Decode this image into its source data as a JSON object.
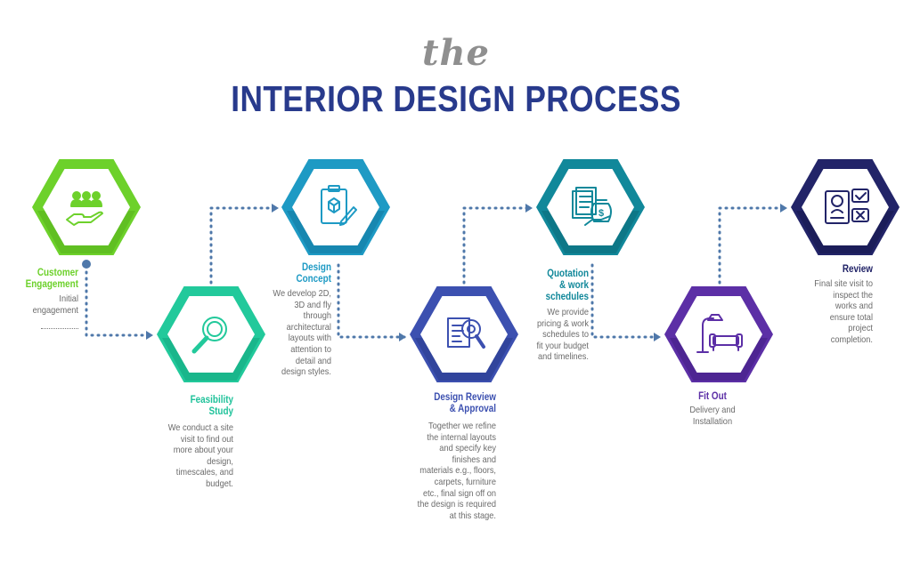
{
  "title": {
    "prefix": "the",
    "main": "INTERIOR DESIGN PROCESS"
  },
  "colors": {
    "title_main": "#283a8c",
    "title_prefix": "#8f8f8f",
    "connector": "#4f78aa",
    "description": "#6b6b6b"
  },
  "steps": [
    {
      "name": "Customer Engagement",
      "title": "Customer\nEngagement",
      "description": "Initial\nengagement",
      "color": "#6dd12b",
      "dark": "#55b11c",
      "icon": "group-hand-icon"
    },
    {
      "name": "Feasibility Study",
      "title": "Feasibility\nStudy",
      "description": "We conduct a site\nvisit to find out\nmore about your\ndesign,\ntimescales, and\nbudget.",
      "color": "#22c99b",
      "dark": "#12a67e",
      "icon": "magnifier-icon"
    },
    {
      "name": "Design Concept",
      "title": "Design\nConcept",
      "description": "We develop 2D,\n3D and fly\nthrough\narchitectural\nlayouts with\nattention to\ndetail and\ndesign styles.",
      "color": "#1e9ac4",
      "dark": "#1278a0",
      "icon": "clipboard-cube-icon"
    },
    {
      "name": "Design Review & Approval",
      "title": "Design  Review\n& Approval",
      "description": "Together we refine\nthe internal layouts\nand specify key\nfinishes and\nmaterials e.g., floors,\ncarpets, furniture\netc., final sign off on\nthe design is required\nat this stage.",
      "color": "#3c50b0",
      "dark": "#283a8c",
      "icon": "document-review-icon"
    },
    {
      "name": "Quotation & work schedules",
      "title": "Quotation\n& work\nschedules",
      "description": "We provide\npricing & work\nschedules to\nfit your budget\nand timelines.",
      "color": "#11889a",
      "dark": "#0b6a78",
      "icon": "invoice-money-icon"
    },
    {
      "name": "Fit Out",
      "title": "Fit Out",
      "description": "Delivery and\nInstallation",
      "color": "#5c2fa6",
      "dark": "#421d82",
      "icon": "sofa-lamp-icon"
    },
    {
      "name": "Review",
      "title": "Review",
      "description": "Final site visit to\ninspect the\nworks and\nensure total\nproject\ncompletion.",
      "color": "#222468",
      "dark": "#16174c",
      "icon": "checklist-profile-icon"
    }
  ]
}
